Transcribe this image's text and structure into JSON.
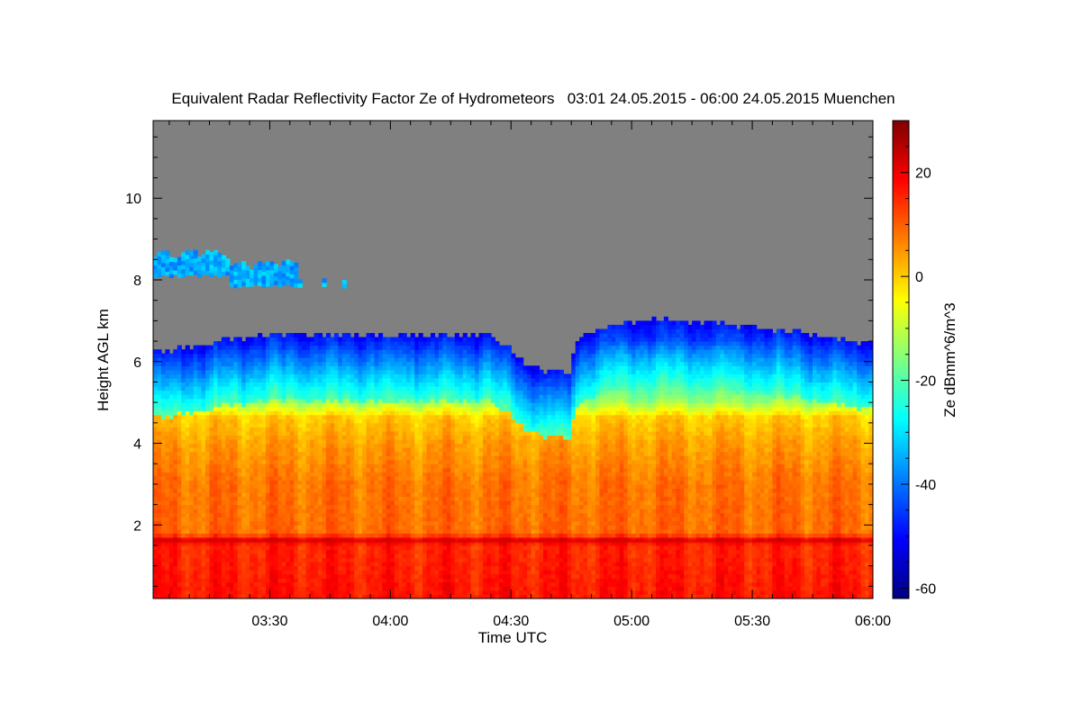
{
  "chart_data": {
    "type": "heatmap",
    "title": "Equivalent Radar Reflectivity Factor Ze of Hydrometeors   03:01 24.05.2015 - 06:00 24.05.2015 Muenchen",
    "xlabel": "Time UTC",
    "ylabel": "Height AGL km",
    "colorbar_label": "Ze dBmm^6/m^3",
    "x_unit": "minutes after 03:00 UTC",
    "xlim": [
      1,
      180
    ],
    "ylim": [
      0.2,
      11.9
    ],
    "x_ticks": [
      {
        "value": 30,
        "label": "03:30"
      },
      {
        "value": 60,
        "label": "04:00"
      },
      {
        "value": 90,
        "label": "04:30"
      },
      {
        "value": 120,
        "label": "05:00"
      },
      {
        "value": 150,
        "label": "05:30"
      },
      {
        "value": 180,
        "label": "06:00"
      }
    ],
    "y_ticks": [
      {
        "value": 2,
        "label": "2"
      },
      {
        "value": 4,
        "label": "4"
      },
      {
        "value": 6,
        "label": "6"
      },
      {
        "value": 8,
        "label": "8"
      },
      {
        "value": 10,
        "label": "10"
      }
    ],
    "colorbar_range": [
      -62,
      30
    ],
    "colorbar_ticks": [
      {
        "value": 20,
        "label": "20"
      },
      {
        "value": 0,
        "label": "0"
      },
      {
        "value": -20,
        "label": "-20"
      },
      {
        "value": -40,
        "label": "-40"
      },
      {
        "value": -60,
        "label": "-60"
      }
    ],
    "no_signal_color": "#808080",
    "colormap": [
      "#00007f",
      "#0000ff",
      "#007fff",
      "#00ffff",
      "#7fff7f",
      "#ffff00",
      "#ff7f00",
      "#ff0000",
      "#7f0000"
    ],
    "echo_top_km": [
      {
        "t": 1,
        "h": 6.2
      },
      {
        "t": 10,
        "h": 6.3
      },
      {
        "t": 20,
        "h": 6.5
      },
      {
        "t": 30,
        "h": 6.6
      },
      {
        "t": 45,
        "h": 6.6
      },
      {
        "t": 60,
        "h": 6.6
      },
      {
        "t": 75,
        "h": 6.6
      },
      {
        "t": 85,
        "h": 6.6
      },
      {
        "t": 92,
        "h": 6.0
      },
      {
        "t": 98,
        "h": 5.7
      },
      {
        "t": 104,
        "h": 5.7
      },
      {
        "t": 106,
        "h": 6.5
      },
      {
        "t": 112,
        "h": 6.8
      },
      {
        "t": 125,
        "h": 7.0
      },
      {
        "t": 140,
        "h": 6.9
      },
      {
        "t": 160,
        "h": 6.7
      },
      {
        "t": 170,
        "h": 6.5
      },
      {
        "t": 180,
        "h": 6.4
      }
    ],
    "upper_cloud_layer": {
      "t_start": 1,
      "t_end": 49,
      "base_km": 7.8,
      "top_km": 8.5,
      "ze_dbz": -35
    },
    "bright_band_height_km": 1.6,
    "ze_profile": [
      {
        "h": 0.2,
        "ze": 17
      },
      {
        "h": 1.45,
        "ze": 15
      },
      {
        "h": 1.6,
        "ze": 20
      },
      {
        "h": 1.75,
        "ze": 9
      },
      {
        "h": 3.0,
        "ze": 8
      },
      {
        "h": 4.0,
        "ze": 4
      },
      {
        "h": 4.6,
        "ze": 0
      },
      {
        "h": 5.0,
        "ze": -14
      },
      {
        "h": 5.5,
        "ze": -24
      },
      {
        "h": 6.0,
        "ze": -32
      },
      {
        "h": 6.5,
        "ze": -45
      },
      {
        "h": 7.0,
        "ze": -50
      }
    ]
  }
}
